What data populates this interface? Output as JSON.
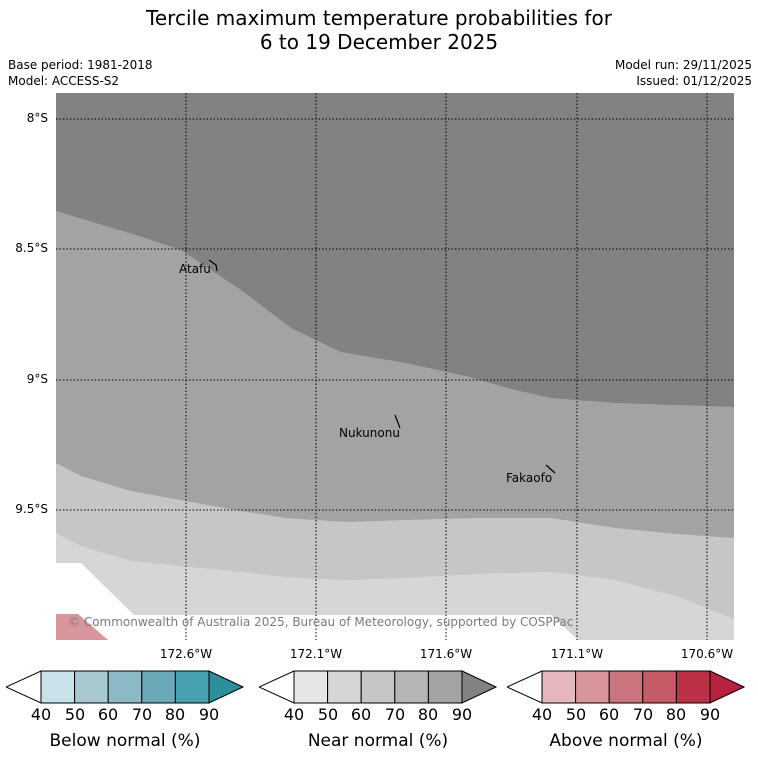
{
  "title_line1": "Tercile maximum temperature probabilities for",
  "title_line2": "6 to 19 December 2025",
  "meta_left": [
    "Base period: 1981-2018",
    "Model: ACCESS-S2"
  ],
  "meta_right": [
    "Model run: 29/11/2025",
    "Issued: 01/12/2025"
  ],
  "lat_labels": [
    "8°S",
    "8.5°S",
    "9°S",
    "9.5°S"
  ],
  "lon_labels": [
    "172.6°W",
    "172.1°W",
    "171.6°W",
    "171.1°W",
    "170.6°W"
  ],
  "places": [
    "Atafu",
    "Nukunonu",
    "Fakaofo"
  ],
  "copyright": "© Commonwealth of Australia 2025, Bureau of Meteorology, supported by COSPPac",
  "colorbars": [
    {
      "label": "Below normal (%)",
      "ticks": [
        "40",
        "50",
        "60",
        "70",
        "80",
        "90"
      ],
      "colors": [
        "#c7e2e8",
        "#a7c9cf",
        "#8bbac4",
        "#6aaab8",
        "#48a1b2",
        "#2c8f9e"
      ]
    },
    {
      "label": "Near normal (%)",
      "ticks": [
        "40",
        "50",
        "60",
        "70",
        "80",
        "90"
      ],
      "colors": [
        "#e6e6e6",
        "#d6d6d6",
        "#c6c6c6",
        "#b5b5b5",
        "#a3a3a3",
        "#828282"
      ]
    },
    {
      "label": "Above normal (%)",
      "ticks": [
        "40",
        "50",
        "60",
        "70",
        "80",
        "90"
      ],
      "colors": [
        "#e3b7bc",
        "#d9959c",
        "#cc747d",
        "#c45b67",
        "#bb3248",
        "#b8223f"
      ]
    }
  ],
  "colors": {
    "near_90": "#828282",
    "near_80": "#a3a3a3",
    "near_70": "#c6c6c6",
    "near_60": "#d6d6d6",
    "above_60": "#d9959c"
  }
}
